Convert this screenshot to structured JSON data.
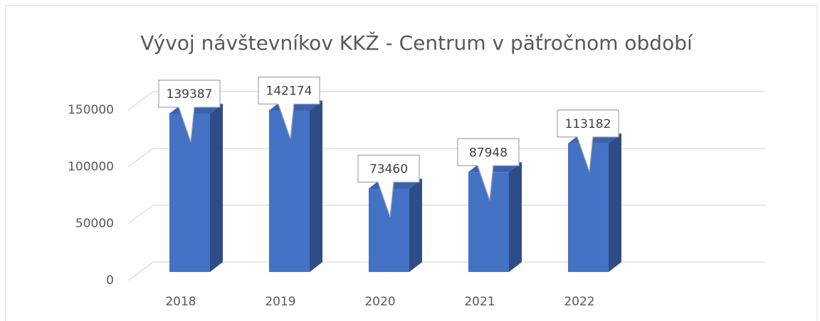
{
  "chart_data": {
    "type": "bar3d",
    "title": "Vývoj návštevníkov  KKŽ  - Centrum v päťročnom období",
    "categories": [
      "2018",
      "2019",
      "2020",
      "2021",
      "2022"
    ],
    "values": [
      139387,
      142174,
      73460,
      87948,
      113182
    ],
    "color": "#4472c4",
    "ylim": [
      0,
      150000
    ],
    "yticks": [
      0,
      50000,
      100000,
      150000
    ],
    "grid": true
  }
}
